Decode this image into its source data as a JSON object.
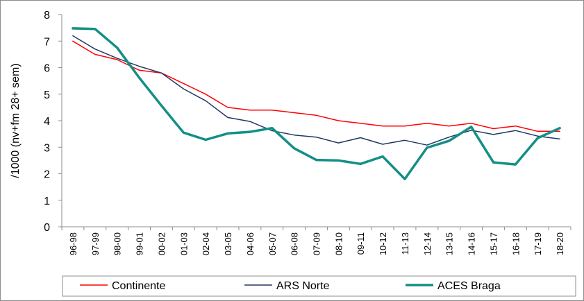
{
  "chart_data": {
    "type": "line",
    "title": "",
    "xlabel": "",
    "ylabel": "/1000 (nv+fm 28+ sem)",
    "ylim": [
      0,
      8
    ],
    "yticks": [
      "0",
      "1",
      "2",
      "3",
      "4",
      "5",
      "6",
      "7",
      "8"
    ],
    "grid": false,
    "legend_position": "bottom",
    "categories": [
      "96-98",
      "97-99",
      "98-00",
      "99-01",
      "00-02",
      "01-03",
      "02-04",
      "03-05",
      "04-06",
      "05-07",
      "06-08",
      "07-09",
      "08-10",
      "09-11",
      "10-12",
      "11-13",
      "12-14",
      "13-15",
      "14-16",
      "15-17",
      "16-18",
      "17-19",
      "18-20"
    ],
    "series": [
      {
        "name": "Continente",
        "color": "#ff0000",
        "width": "thin",
        "values": [
          7.0,
          6.5,
          6.3,
          5.9,
          5.8,
          5.4,
          5.0,
          4.5,
          4.4,
          4.4,
          4.3,
          4.2,
          4.0,
          3.9,
          3.8,
          3.8,
          3.9,
          3.8,
          3.9,
          3.7,
          3.8,
          3.6,
          3.6
        ]
      },
      {
        "name": "ARS Norte",
        "color": "#1f3864",
        "width": "thin",
        "values": [
          7.2,
          6.7,
          6.35,
          6.05,
          5.8,
          5.2,
          4.75,
          4.12,
          3.97,
          3.62,
          3.46,
          3.38,
          3.16,
          3.36,
          3.11,
          3.26,
          3.08,
          3.38,
          3.64,
          3.48,
          3.63,
          3.42,
          3.31
        ]
      },
      {
        "name": "ACES Braga",
        "color": "#138f86",
        "width": "thick",
        "values": [
          7.48,
          7.46,
          6.75,
          5.62,
          4.57,
          3.55,
          3.28,
          3.52,
          3.58,
          3.72,
          2.96,
          2.52,
          2.5,
          2.37,
          2.65,
          1.8,
          2.98,
          3.24,
          3.77,
          2.43,
          2.35,
          3.34,
          3.72
        ]
      }
    ]
  }
}
